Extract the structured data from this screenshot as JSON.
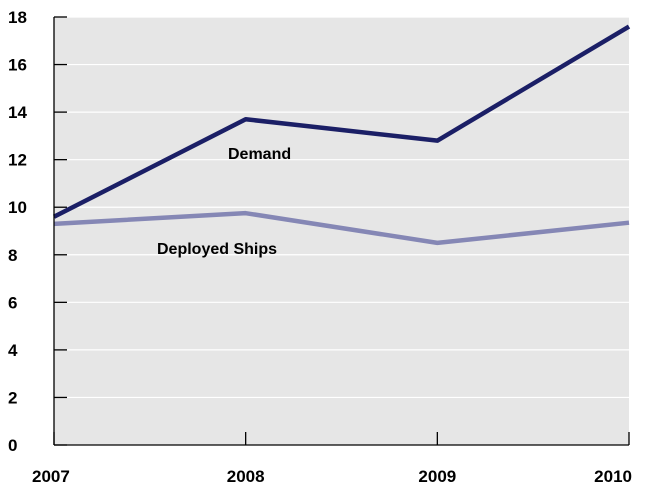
{
  "chart_data": {
    "type": "line",
    "x": [
      "2007",
      "2008",
      "2009",
      "2010"
    ],
    "ylim": [
      0,
      18
    ],
    "yticks": [
      0,
      2,
      4,
      6,
      8,
      10,
      12,
      14,
      16,
      18
    ],
    "grid": true,
    "background_color": "#e6e6e6",
    "grid_color": "#ffffff",
    "series": [
      {
        "name": "Demand",
        "values": [
          9.6,
          13.7,
          12.8,
          17.6
        ],
        "color": "#1b1f66"
      },
      {
        "name": "Deployed Ships",
        "values": [
          9.3,
          9.75,
          8.5,
          9.35
        ],
        "color": "#8587b5"
      }
    ]
  }
}
